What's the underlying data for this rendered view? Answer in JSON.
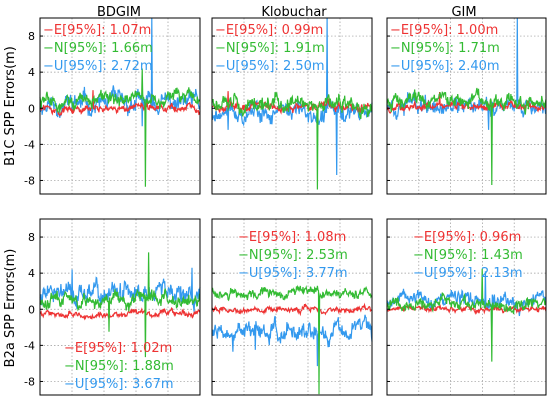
{
  "figure": {
    "col_titles": [
      "BDGIM",
      "Klobuchar",
      "GIM"
    ],
    "row_labels": [
      "B1C SPP Errors(m)",
      "B2a SPP Errors(m)"
    ]
  },
  "colors": {
    "E": "#ee3333",
    "N": "#33bb33",
    "U": "#3399ee"
  },
  "chart_data": [
    {
      "type": "line",
      "row": 0,
      "col": 0,
      "ylim": [
        -9.5,
        10
      ],
      "yticks": [
        -8,
        -4,
        0,
        4,
        8
      ],
      "grid": true,
      "legend_placement": "top-left",
      "series": [
        {
          "key": "E",
          "label": "E[95%]: 1.07m",
          "baseline": 0.0,
          "noise": 0.45,
          "spikes": [
            [
              0.33,
              2.0
            ]
          ]
        },
        {
          "key": "N",
          "label": "N[95%]: 1.66m",
          "baseline": 1.0,
          "noise": 0.8,
          "spikes": [
            [
              0.66,
              -8.7
            ],
            [
              0.64,
              4.4
            ]
          ]
        },
        {
          "key": "U",
          "label": "U[95%]: 2.72m",
          "baseline": 0.5,
          "noise": 1.2,
          "spikes": [
            [
              0.7,
              10.0
            ],
            [
              0.64,
              -2.0
            ]
          ]
        }
      ]
    },
    {
      "type": "line",
      "row": 0,
      "col": 1,
      "ylim": [
        -9.5,
        10
      ],
      "yticks": [
        -8,
        -4,
        0,
        4,
        8
      ],
      "grid": true,
      "legend_placement": "top-left",
      "series": [
        {
          "key": "E",
          "label": "E[95%]: 0.99m",
          "baseline": 0.2,
          "noise": 0.5,
          "spikes": [
            [
              0.1,
              1.9
            ]
          ]
        },
        {
          "key": "N",
          "label": "N[95%]: 1.91m",
          "baseline": 0.3,
          "noise": 1.0,
          "spikes": [
            [
              0.66,
              -9.0
            ]
          ]
        },
        {
          "key": "U",
          "label": "U[95%]: 2.50m",
          "baseline": -0.5,
          "noise": 1.1,
          "spikes": [
            [
              0.72,
              10.0
            ],
            [
              0.78,
              -7.4
            ],
            [
              0.1,
              -2.4
            ]
          ]
        }
      ]
    },
    {
      "type": "line",
      "row": 0,
      "col": 2,
      "ylim": [
        -9.5,
        10
      ],
      "yticks": [
        -8,
        -4,
        0,
        4,
        8
      ],
      "grid": true,
      "legend_placement": "top-left",
      "series": [
        {
          "key": "E",
          "label": "E[95%]: 1.00m",
          "baseline": 0.2,
          "noise": 0.45,
          "spikes": [
            [
              0.33,
              1.8
            ]
          ]
        },
        {
          "key": "N",
          "label": "N[95%]: 1.71m",
          "baseline": 0.8,
          "noise": 0.85,
          "spikes": [
            [
              0.66,
              -8.5
            ]
          ]
        },
        {
          "key": "U",
          "label": "U[95%]: 2.40m",
          "baseline": 0.6,
          "noise": 1.1,
          "spikes": [
            [
              0.82,
              10.0
            ],
            [
              0.64,
              -2.4
            ]
          ]
        }
      ]
    },
    {
      "type": "line",
      "row": 1,
      "col": 0,
      "ylim": [
        -9.5,
        10
      ],
      "yticks": [
        -8,
        -4,
        0,
        4,
        8
      ],
      "grid": true,
      "legend_placement": "bottom-left",
      "series": [
        {
          "key": "E",
          "label": "E[95%]: 1.02m",
          "baseline": -0.5,
          "noise": 0.35,
          "spikes": []
        },
        {
          "key": "N",
          "label": "N[95%]: 1.88m",
          "baseline": 1.0,
          "noise": 0.9,
          "spikes": [
            [
              0.68,
              6.3
            ],
            [
              0.66,
              -5.3
            ],
            [
              0.43,
              -2.5
            ]
          ]
        },
        {
          "key": "U",
          "label": "U[95%]: 3.67m",
          "baseline": 1.6,
          "noise": 1.2,
          "spikes": [
            [
              0.2,
              4.4
            ],
            [
              0.95,
              4.6
            ]
          ]
        }
      ]
    },
    {
      "type": "line",
      "row": 1,
      "col": 1,
      "ylim": [
        -9.5,
        10
      ],
      "yticks": [
        -8,
        -4,
        0,
        4,
        8
      ],
      "grid": true,
      "legend_placement": "top-right",
      "series": [
        {
          "key": "E",
          "label": "E[95%]: 1.08m",
          "baseline": 0.0,
          "noise": 0.35,
          "spikes": []
        },
        {
          "key": "N",
          "label": "N[95%]: 2.53m",
          "baseline": 1.8,
          "noise": 0.6,
          "spikes": [
            [
              0.67,
              -9.4
            ],
            [
              0.5,
              2.2
            ]
          ]
        },
        {
          "key": "U",
          "label": "U[95%]: 3.77m",
          "baseline": -2.5,
          "noise": 1.1,
          "spikes": [
            [
              0.13,
              -4.7
            ],
            [
              0.27,
              -4.5
            ],
            [
              0.66,
              -6.3
            ]
          ]
        }
      ]
    },
    {
      "type": "line",
      "row": 1,
      "col": 2,
      "ylim": [
        -9.5,
        10
      ],
      "yticks": [
        -8,
        -4,
        0,
        4,
        8
      ],
      "grid": true,
      "legend_placement": "top-right",
      "series": [
        {
          "key": "E",
          "label": "E[95%]: 0.96m",
          "baseline": 0.0,
          "noise": 0.3,
          "spikes": []
        },
        {
          "key": "N",
          "label": "N[95%]: 1.43m",
          "baseline": 0.5,
          "noise": 0.75,
          "spikes": [
            [
              0.66,
              -5.8
            ],
            [
              0.6,
              4.5
            ]
          ]
        },
        {
          "key": "U",
          "label": "U[95%]: 2.13m",
          "baseline": 1.0,
          "noise": 0.9,
          "spikes": [
            [
              0.62,
              4.2
            ],
            [
              0.66,
              -3.0
            ]
          ]
        }
      ]
    }
  ]
}
